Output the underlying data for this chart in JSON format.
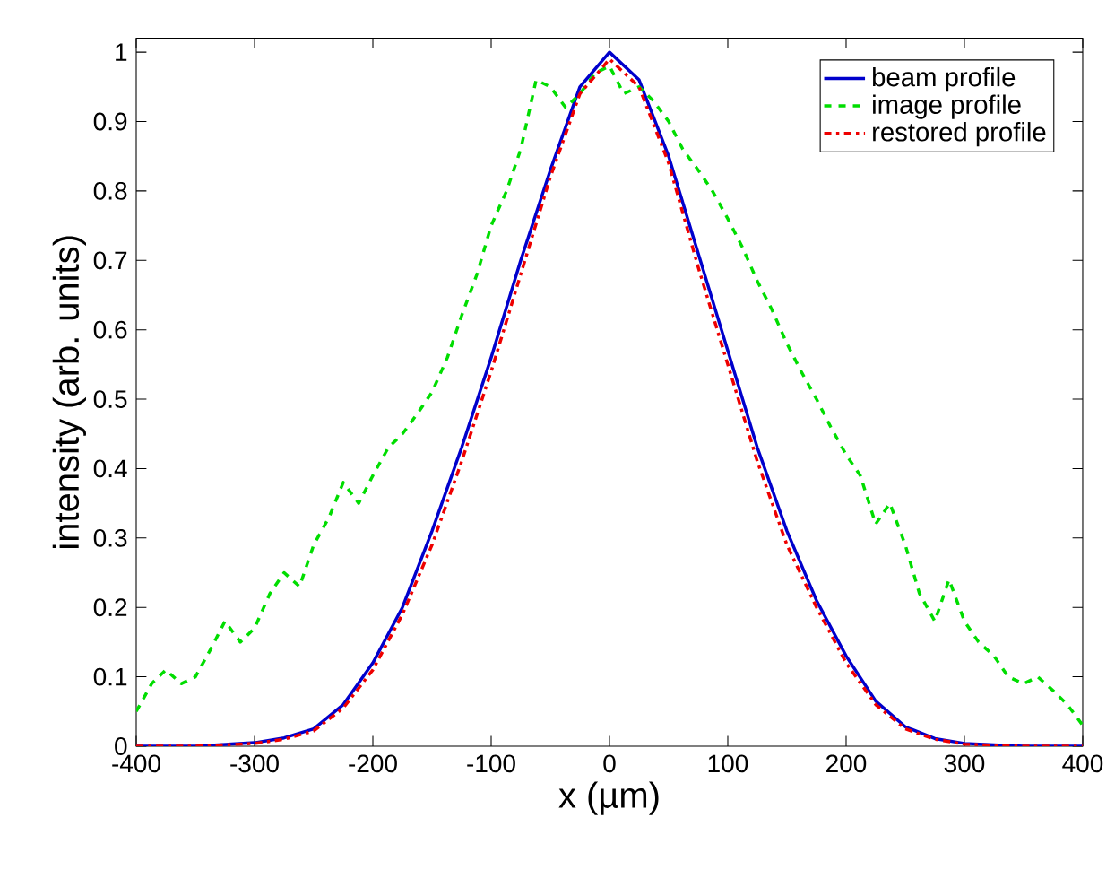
{
  "chart_data": {
    "type": "line",
    "xlabel": "x (µm)",
    "ylabel": "intensity (arb. units)",
    "xlim": [
      -400,
      400
    ],
    "ylim": [
      0,
      1.02
    ],
    "xticks": [
      -400,
      -300,
      -200,
      -100,
      0,
      100,
      200,
      300,
      400
    ],
    "yticks": [
      0,
      0.1,
      0.2,
      0.3,
      0.4,
      0.5,
      0.6,
      0.7,
      0.8,
      0.9,
      1
    ],
    "grid": false,
    "legend": "top right",
    "series": [
      {
        "name": "beam profile",
        "color": "#0000cc",
        "line_style": "solid",
        "x": [
          -400,
          -350,
          -300,
          -275,
          -250,
          -225,
          -200,
          -175,
          -150,
          -125,
          -100,
          -75,
          -50,
          -25,
          0,
          25,
          50,
          75,
          100,
          125,
          150,
          175,
          200,
          225,
          250,
          275,
          300,
          350,
          400
        ],
        "values": [
          0,
          0,
          0.005,
          0.012,
          0.025,
          0.06,
          0.12,
          0.2,
          0.31,
          0.43,
          0.56,
          0.7,
          0.83,
          0.95,
          1.0,
          0.96,
          0.85,
          0.71,
          0.57,
          0.43,
          0.31,
          0.21,
          0.13,
          0.065,
          0.028,
          0.011,
          0.004,
          0,
          0
        ]
      },
      {
        "name": "image profile",
        "color": "#00dd00",
        "line_style": "dashed",
        "x": [
          -400,
          -387,
          -375,
          -362,
          -350,
          -337,
          -325,
          -312,
          -300,
          -287,
          -275,
          -262,
          -250,
          -237,
          -225,
          -212,
          -200,
          -187,
          -175,
          -162,
          -150,
          -137,
          -125,
          -112,
          -100,
          -87,
          -75,
          -62,
          -50,
          -37,
          -25,
          -12,
          0,
          12,
          25,
          37,
          50,
          62,
          75,
          87,
          100,
          112,
          125,
          137,
          150,
          162,
          175,
          187,
          200,
          212,
          225,
          237,
          250,
          262,
          275,
          287,
          300,
          312,
          325,
          337,
          350,
          362,
          375,
          387,
          400
        ],
        "values": [
          0.05,
          0.09,
          0.11,
          0.09,
          0.1,
          0.14,
          0.18,
          0.15,
          0.17,
          0.22,
          0.25,
          0.23,
          0.29,
          0.33,
          0.38,
          0.35,
          0.39,
          0.43,
          0.45,
          0.48,
          0.51,
          0.56,
          0.62,
          0.68,
          0.75,
          0.8,
          0.86,
          0.96,
          0.95,
          0.92,
          0.94,
          0.97,
          0.98,
          0.94,
          0.95,
          0.93,
          0.9,
          0.86,
          0.83,
          0.8,
          0.76,
          0.72,
          0.67,
          0.63,
          0.58,
          0.54,
          0.5,
          0.46,
          0.42,
          0.39,
          0.32,
          0.35,
          0.29,
          0.22,
          0.18,
          0.24,
          0.18,
          0.15,
          0.13,
          0.1,
          0.09,
          0.1,
          0.08,
          0.06,
          0.03
        ]
      },
      {
        "name": "restored profile",
        "color": "#ee0000",
        "line_style": "dashdot",
        "x": [
          -400,
          -350,
          -300,
          -275,
          -250,
          -225,
          -200,
          -175,
          -150,
          -125,
          -100,
          -75,
          -50,
          -25,
          0,
          25,
          50,
          75,
          100,
          125,
          150,
          175,
          200,
          225,
          250,
          275,
          300,
          350,
          400
        ],
        "values": [
          0,
          0,
          0.004,
          0.01,
          0.022,
          0.055,
          0.11,
          0.19,
          0.29,
          0.41,
          0.54,
          0.68,
          0.82,
          0.94,
          0.99,
          0.95,
          0.84,
          0.69,
          0.55,
          0.41,
          0.29,
          0.2,
          0.12,
          0.06,
          0.025,
          0.01,
          0.003,
          0,
          0
        ]
      }
    ]
  }
}
